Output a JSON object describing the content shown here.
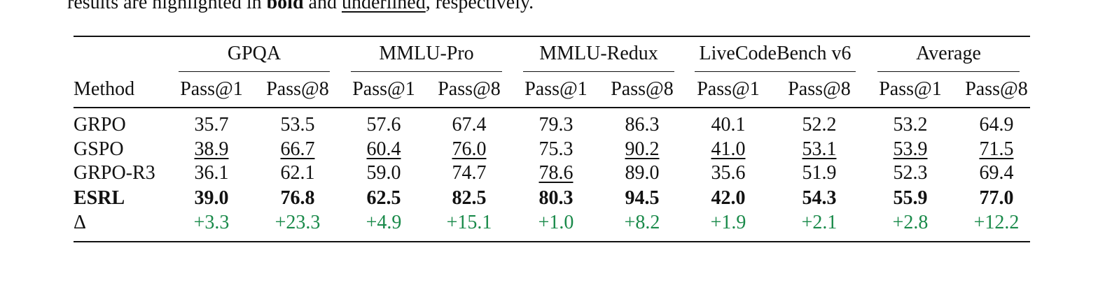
{
  "caption": {
    "parts": [
      "results are highlighted in ",
      "bold",
      " and ",
      "underlined",
      ", respectively."
    ]
  },
  "table": {
    "groups": [
      "GPQA",
      "MMLU-Pro",
      "MMLU-Redux",
      "LiveCodeBench v6",
      "Average"
    ],
    "header": [
      "Method",
      "Pass@1",
      "Pass@8",
      "Pass@1",
      "Pass@8",
      "Pass@1",
      "Pass@8",
      "Pass@1",
      "Pass@8",
      "Pass@1",
      "Pass@8"
    ],
    "rows": [
      [
        "GRPO",
        "35.7",
        "53.5",
        "57.6",
        "67.4",
        "79.3",
        "86.3",
        "40.1",
        "52.2",
        "53.2",
        "64.9"
      ],
      [
        "GSPO",
        "38.9",
        "66.7",
        "60.4",
        "76.0",
        "75.3",
        "90.2",
        "41.0",
        "53.1",
        "53.9",
        "71.5"
      ],
      [
        "GRPO-R3",
        "36.1",
        "62.1",
        "59.0",
        "74.7",
        "78.6",
        "89.0",
        "35.6",
        "51.9",
        "52.3",
        "69.4"
      ],
      [
        "ESRL",
        "39.0",
        "76.8",
        "62.5",
        "82.5",
        "80.3",
        "94.5",
        "42.0",
        "54.3",
        "55.9",
        "77.0"
      ],
      [
        "Δ",
        "+3.3",
        "+23.3",
        "+4.9",
        "+15.1",
        "+1.0",
        "+8.2",
        "+1.9",
        "+2.1",
        "+2.8",
        "+12.2"
      ]
    ]
  }
}
